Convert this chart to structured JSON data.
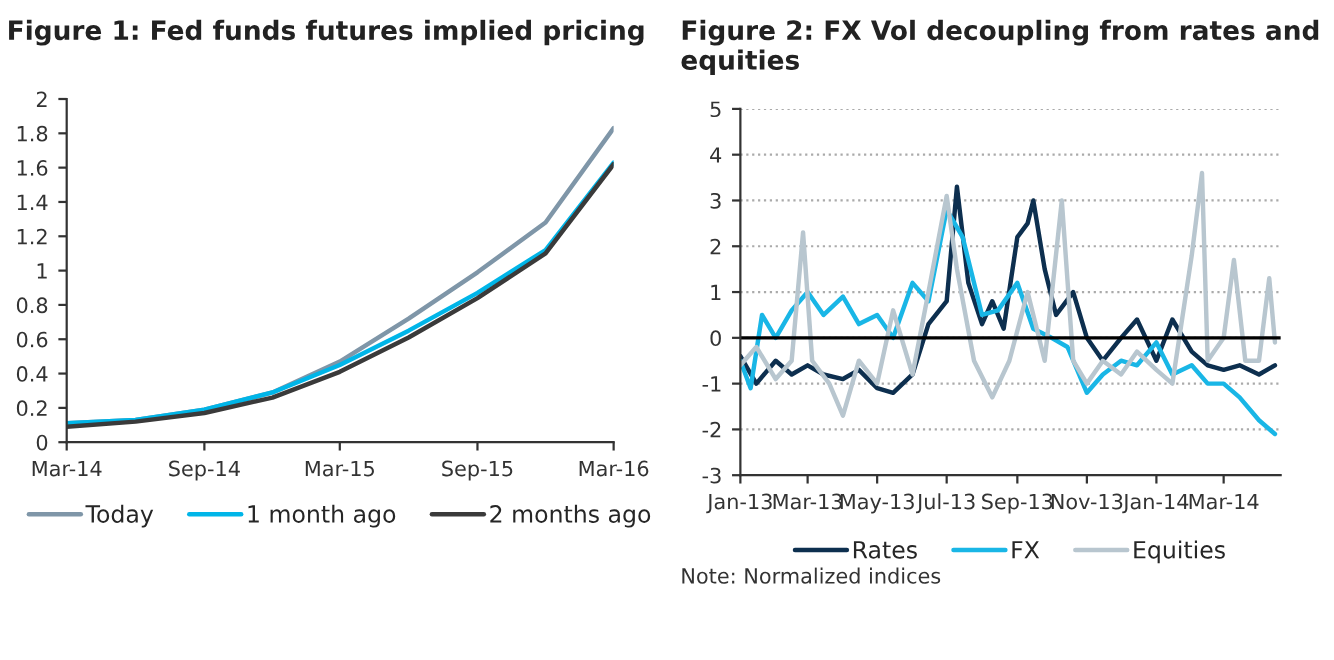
{
  "chart_data": [
    {
      "type": "line",
      "title": "Figure 1: Fed funds futures implied pricing",
      "x": [
        "2014-03",
        "2014-06",
        "2014-09",
        "2014-12",
        "2015-03",
        "2015-06",
        "2015-09",
        "2015-12",
        "2016-03"
      ],
      "series": [
        {
          "name": "Today",
          "color": "#7f96a8",
          "values": [
            0.11,
            0.13,
            0.19,
            0.29,
            0.47,
            0.72,
            0.99,
            1.28,
            1.83
          ]
        },
        {
          "name": "1 month ago",
          "color": "#00b5e8",
          "values": [
            0.11,
            0.13,
            0.19,
            0.29,
            0.45,
            0.65,
            0.87,
            1.12,
            1.63
          ]
        },
        {
          "name": "2 months ago",
          "color": "#3a3a3a",
          "values": [
            0.09,
            0.12,
            0.17,
            0.26,
            0.41,
            0.61,
            0.84,
            1.1,
            1.62
          ]
        }
      ],
      "xlim": [
        "2014-03",
        "2016-03"
      ],
      "xticks": [
        {
          "value": "2014-03",
          "label": "Mar-14"
        },
        {
          "value": "2014-09",
          "label": "Sep-14"
        },
        {
          "value": "2015-03",
          "label": "Mar-15"
        },
        {
          "value": "2015-09",
          "label": "Sep-15"
        },
        {
          "value": "2016-03",
          "label": "Mar-16"
        }
      ],
      "ylim": [
        0,
        2
      ],
      "yticks": [
        0,
        0.2,
        0.4,
        0.6,
        0.8,
        1,
        1.2,
        1.4,
        1.6,
        1.8,
        2
      ],
      "grid": false,
      "legend": "bottom",
      "line_style": "solid",
      "marker": "none"
    },
    {
      "type": "line",
      "title": "Figure 2: FX Vol decoupling from rates and equities",
      "series": [
        {
          "name": "Rates",
          "color": "#0d2f4f",
          "x": [
            "2013-01-01",
            "2013-01-15",
            "2013-02-01",
            "2013-02-15",
            "2013-03-01",
            "2013-03-15",
            "2013-04-01",
            "2013-04-15",
            "2013-05-01",
            "2013-05-15",
            "2013-06-01",
            "2013-06-15",
            "2013-07-01",
            "2013-07-10",
            "2013-07-20",
            "2013-08-01",
            "2013-08-10",
            "2013-08-20",
            "2013-09-01",
            "2013-09-10",
            "2013-09-15",
            "2013-09-25",
            "2013-10-05",
            "2013-10-20",
            "2013-11-01",
            "2013-11-15",
            "2013-12-01",
            "2013-12-15",
            "2014-01-01",
            "2014-01-15",
            "2014-02-01",
            "2014-02-15",
            "2014-03-01",
            "2014-03-15",
            "2014-04-01",
            "2014-04-15"
          ],
          "values": [
            -0.4,
            -1.0,
            -0.5,
            -0.8,
            -0.6,
            -0.8,
            -0.9,
            -0.7,
            -1.1,
            -1.2,
            -0.8,
            0.3,
            0.8,
            3.3,
            1.2,
            0.3,
            0.8,
            0.2,
            2.2,
            2.5,
            3.0,
            1.5,
            0.5,
            1.0,
            0.0,
            -0.5,
            0.0,
            0.4,
            -0.5,
            0.4,
            -0.3,
            -0.6,
            -0.7,
            -0.6,
            -0.8,
            -0.6
          ]
        },
        {
          "name": "FX",
          "color": "#19b6e6",
          "x": [
            "2013-01-01",
            "2013-01-10",
            "2013-01-20",
            "2013-02-01",
            "2013-02-15",
            "2013-03-01",
            "2013-03-15",
            "2013-04-01",
            "2013-04-15",
            "2013-05-01",
            "2013-05-15",
            "2013-06-01",
            "2013-06-15",
            "2013-07-01",
            "2013-07-15",
            "2013-08-01",
            "2013-08-15",
            "2013-09-01",
            "2013-09-15",
            "2013-10-01",
            "2013-10-15",
            "2013-11-01",
            "2013-11-15",
            "2013-12-01",
            "2013-12-15",
            "2014-01-01",
            "2014-01-15",
            "2014-02-01",
            "2014-02-15",
            "2014-03-01",
            "2014-03-15",
            "2014-04-01",
            "2014-04-15"
          ],
          "values": [
            -0.5,
            -1.1,
            0.5,
            0.0,
            0.6,
            1.0,
            0.5,
            0.9,
            0.3,
            0.5,
            0.0,
            1.2,
            0.8,
            2.8,
            2.2,
            0.5,
            0.6,
            1.2,
            0.2,
            0.0,
            -0.2,
            -1.2,
            -0.8,
            -0.5,
            -0.6,
            -0.1,
            -0.8,
            -0.6,
            -1.0,
            -1.0,
            -1.3,
            -1.8,
            -2.1
          ]
        },
        {
          "name": "Equities",
          "color": "#b8c6cf",
          "x": [
            "2013-01-01",
            "2013-01-15",
            "2013-02-01",
            "2013-02-15",
            "2013-02-25",
            "2013-03-05",
            "2013-03-20",
            "2013-04-01",
            "2013-04-15",
            "2013-05-01",
            "2013-05-15",
            "2013-06-01",
            "2013-06-15",
            "2013-07-01",
            "2013-07-10",
            "2013-07-25",
            "2013-08-10",
            "2013-08-25",
            "2013-09-10",
            "2013-09-25",
            "2013-10-10",
            "2013-10-20",
            "2013-11-01",
            "2013-11-15",
            "2013-12-01",
            "2013-12-15",
            "2014-01-01",
            "2014-01-15",
            "2014-02-01",
            "2014-02-10",
            "2014-02-15",
            "2014-03-01",
            "2014-03-10",
            "2014-03-20",
            "2014-04-01",
            "2014-04-10",
            "2014-04-15"
          ],
          "values": [
            -0.6,
            -0.2,
            -0.9,
            -0.5,
            2.3,
            -0.5,
            -1.0,
            -1.7,
            -0.5,
            -1.0,
            0.6,
            -0.8,
            1.0,
            3.1,
            1.5,
            -0.5,
            -1.3,
            -0.5,
            1.0,
            -0.5,
            3.0,
            -0.5,
            -1.0,
            -0.5,
            -0.8,
            -0.3,
            -0.7,
            -1.0,
            1.8,
            3.6,
            -0.5,
            0.0,
            1.7,
            -0.5,
            -0.5,
            1.3,
            -0.1
          ]
        }
      ],
      "xlim": [
        "2013-01-01",
        "2014-04-20"
      ],
      "xticks": [
        {
          "value": "2013-01-01",
          "label": "Jan-13"
        },
        {
          "value": "2013-03-01",
          "label": "Mar-13"
        },
        {
          "value": "2013-05-01",
          "label": "May-13"
        },
        {
          "value": "2013-07-01",
          "label": "Jul-13"
        },
        {
          "value": "2013-09-01",
          "label": "Sep-13"
        },
        {
          "value": "2013-11-01",
          "label": "Nov-13"
        },
        {
          "value": "2014-01-01",
          "label": "Jan-14"
        },
        {
          "value": "2014-03-01",
          "label": "Mar-14"
        }
      ],
      "ylim": [
        -3,
        5
      ],
      "yticks": [
        -3,
        -2,
        -1,
        0,
        1,
        2,
        3,
        4,
        5
      ],
      "ref_lines": [
        {
          "axis": "y",
          "value": 0,
          "color": "#000000"
        }
      ],
      "grid": "y",
      "legend": "bottom",
      "line_style": "solid",
      "marker": "none",
      "annotations": [
        "Note: Normalized indices"
      ]
    }
  ]
}
